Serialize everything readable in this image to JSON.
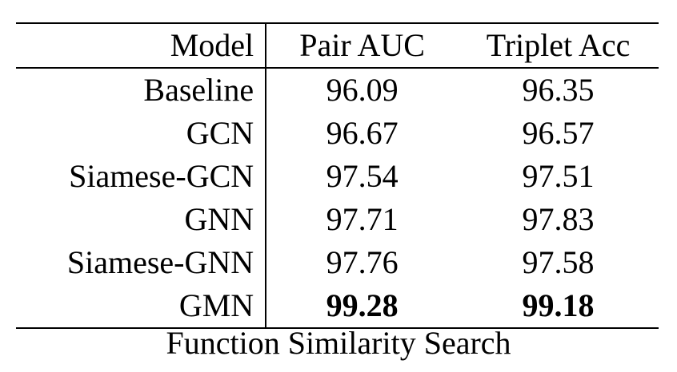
{
  "table": {
    "headers": {
      "model": "Model",
      "pair_auc": "Pair AUC",
      "triplet_acc": "Triplet Acc"
    },
    "rows": [
      {
        "model": "Baseline",
        "pair_auc": "96.09",
        "triplet_acc": "96.35",
        "bold": false
      },
      {
        "model": "GCN",
        "pair_auc": "96.67",
        "triplet_acc": "96.57",
        "bold": false
      },
      {
        "model": "Siamese-GCN",
        "pair_auc": "97.54",
        "triplet_acc": "97.51",
        "bold": false
      },
      {
        "model": "GNN",
        "pair_auc": "97.71",
        "triplet_acc": "97.83",
        "bold": false
      },
      {
        "model": "Siamese-GNN",
        "pair_auc": "97.76",
        "triplet_acc": "97.58",
        "bold": false
      },
      {
        "model": "GMN",
        "pair_auc": "99.28",
        "triplet_acc": "99.18",
        "bold": true
      }
    ],
    "caption": "Function Similarity Search"
  }
}
